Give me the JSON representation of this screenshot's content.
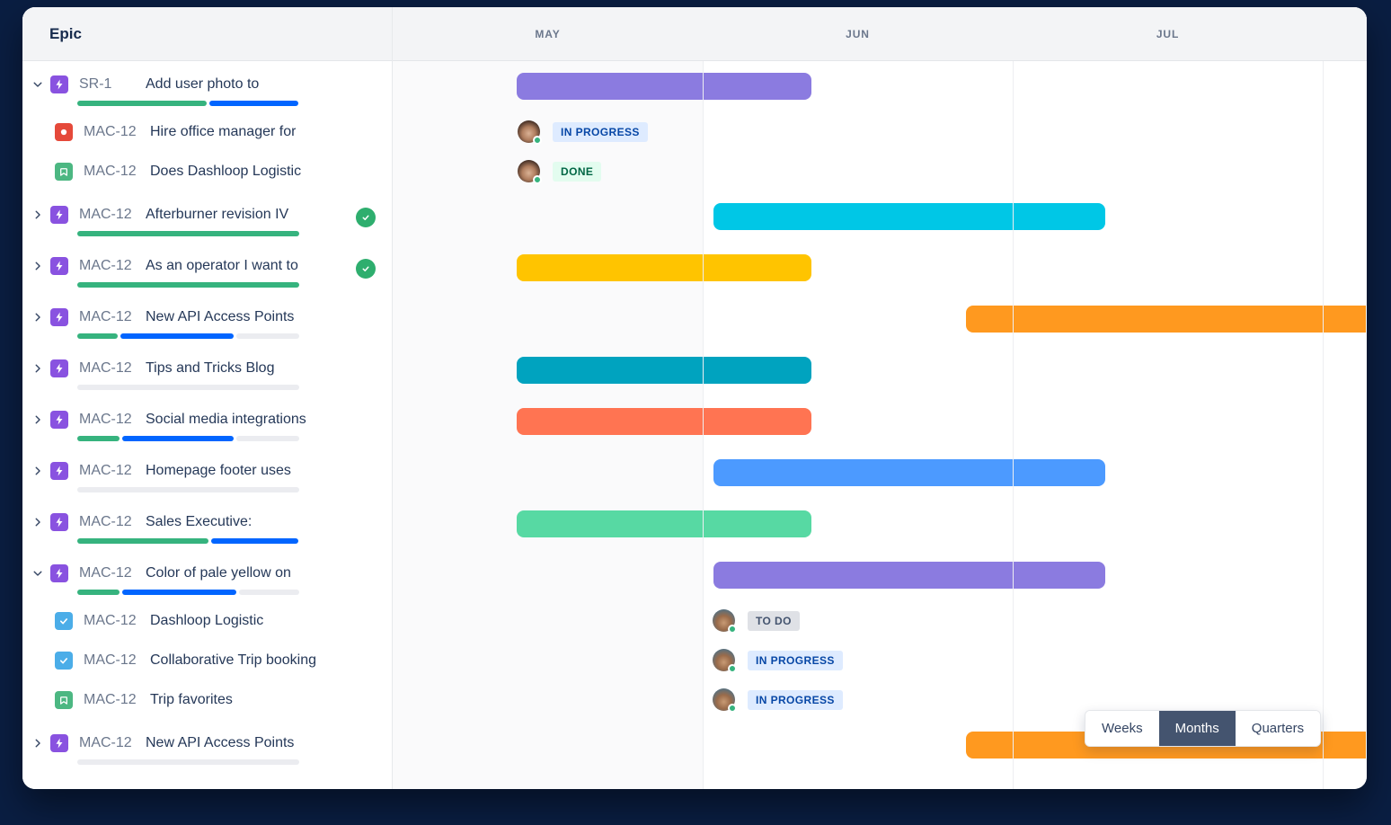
{
  "header": {
    "epic_label": "Epic",
    "months": [
      "MAY",
      "JUN",
      "JUL"
    ]
  },
  "view_toggle": {
    "options": [
      "Weeks",
      "Months",
      "Quarters"
    ],
    "selected": "Months"
  },
  "colors": {
    "frame": "#0A1E42",
    "bars": {
      "purple": "#8B7BE0",
      "cyan": "#00C7E6",
      "yellow": "#FFC400",
      "orange": "#FF991F",
      "teal": "#00A3BF",
      "coral": "#FF7452",
      "blue": "#4C9AFF",
      "mint": "#57D9A3"
    },
    "progress": {
      "green": "#36B37E",
      "blue": "#0165FF",
      "grey": "#EBECF0"
    },
    "issue_types": {
      "epic": "#8952E0",
      "bug": "#E5493A",
      "story": "#4CB782",
      "task": "#4BADE8"
    },
    "completed_badge": "#2EAE6E",
    "statuses": {
      "todo": {
        "bg": "#DFE1E6",
        "fg": "#44546F"
      },
      "inprogress": {
        "bg": "#DEEBFF",
        "fg": "#0747A6"
      },
      "done": {
        "bg": "#E3FCEF",
        "fg": "#006644"
      }
    }
  },
  "rows": [
    {
      "kind": "epic",
      "icon": "epic",
      "key": "SR-1",
      "title": "Add user photo to",
      "chevron": "down",
      "completed": false,
      "progress": [
        [
          "green",
          59
        ],
        [
          "blue",
          41
        ]
      ],
      "bar": {
        "color": "purple",
        "start": 0.4,
        "end": 1.35
      }
    },
    {
      "kind": "issue",
      "icon": "bug",
      "key": "MAC-12",
      "title": "Hire office manager for",
      "status": {
        "label": "IN PROGRESS",
        "type": "inprogress"
      },
      "statusStart": 0.403,
      "avatar": "w"
    },
    {
      "kind": "issue",
      "icon": "story",
      "key": "MAC-12",
      "title": "Does Dashloop Logistic",
      "status": {
        "label": "DONE",
        "type": "done"
      },
      "statusStart": 0.403,
      "avatar": "w"
    },
    {
      "kind": "epic",
      "icon": "epic",
      "key": "MAC-12",
      "title": "Afterburner revision IV",
      "chevron": "right",
      "completed": true,
      "progress": [
        [
          "green",
          100
        ]
      ],
      "bar": {
        "color": "cyan",
        "start": 1.035,
        "end": 2.3
      }
    },
    {
      "kind": "epic",
      "icon": "epic",
      "key": "MAC-12",
      "title": "As an operator I want to",
      "chevron": "right",
      "completed": true,
      "progress": [
        [
          "green",
          100
        ]
      ],
      "bar": {
        "color": "yellow",
        "start": 0.4,
        "end": 1.35
      }
    },
    {
      "kind": "epic",
      "icon": "epic",
      "key": "MAC-12",
      "title": "New API Access Points",
      "chevron": "right",
      "completed": false,
      "progress": [
        [
          "green",
          19
        ],
        [
          "blue",
          52
        ],
        [
          "grey",
          29
        ]
      ],
      "bar": {
        "color": "orange",
        "start": 1.85,
        "end": 3.2
      }
    },
    {
      "kind": "epic",
      "icon": "epic",
      "key": "MAC-12",
      "title": "Tips and Tricks Blog",
      "chevron": "right",
      "completed": false,
      "progress": [
        [
          "grey",
          100
        ]
      ],
      "bar": {
        "color": "teal",
        "start": 0.4,
        "end": 1.35
      }
    },
    {
      "kind": "epic",
      "icon": "epic",
      "key": "MAC-12",
      "title": "Social media integrations",
      "chevron": "right",
      "completed": false,
      "progress": [
        [
          "green",
          20
        ],
        [
          "blue",
          51
        ],
        [
          "grey",
          29
        ]
      ],
      "bar": {
        "color": "coral",
        "start": 0.4,
        "end": 1.35
      }
    },
    {
      "kind": "epic",
      "icon": "epic",
      "key": "MAC-12",
      "title": "Homepage footer uses",
      "chevron": "right",
      "completed": false,
      "progress": [
        [
          "grey",
          100
        ]
      ],
      "bar": {
        "color": "blue",
        "start": 1.035,
        "end": 2.3
      }
    },
    {
      "kind": "epic",
      "icon": "epic",
      "key": "MAC-12",
      "title": "Sales Executive:",
      "chevron": "right",
      "completed": false,
      "progress": [
        [
          "green",
          60
        ],
        [
          "blue",
          40
        ]
      ],
      "bar": {
        "color": "mint",
        "start": 0.4,
        "end": 1.35
      }
    },
    {
      "kind": "epic",
      "icon": "epic",
      "key": "MAC-12",
      "title": "Color of pale yellow on",
      "chevron": "down",
      "completed": false,
      "progress": [
        [
          "green",
          20
        ],
        [
          "blue",
          52
        ],
        [
          "grey",
          28
        ]
      ],
      "bar": {
        "color": "purple",
        "start": 1.035,
        "end": 2.3
      }
    },
    {
      "kind": "issue",
      "icon": "task",
      "key": "MAC-12",
      "title": "Dashloop Logistic",
      "status": {
        "label": "TO DO",
        "type": "todo"
      },
      "statusStart": 1.032,
      "avatar": "m"
    },
    {
      "kind": "issue",
      "icon": "task",
      "key": "MAC-12",
      "title": "Collaborative Trip booking",
      "status": {
        "label": "IN PROGRESS",
        "type": "inprogress"
      },
      "statusStart": 1.032,
      "avatar": "m"
    },
    {
      "kind": "issue",
      "icon": "story",
      "key": "MAC-12",
      "title": "Trip favorites",
      "status": {
        "label": "IN PROGRESS",
        "type": "inprogress"
      },
      "statusStart": 1.032,
      "avatar": "m"
    },
    {
      "kind": "epic",
      "icon": "epic",
      "key": "MAC-12",
      "title": "New API Access Points",
      "chevron": "right",
      "completed": false,
      "progress": [
        [
          "grey",
          100
        ]
      ],
      "bar": {
        "color": "orange",
        "start": 1.85,
        "end": 3.2
      }
    }
  ]
}
